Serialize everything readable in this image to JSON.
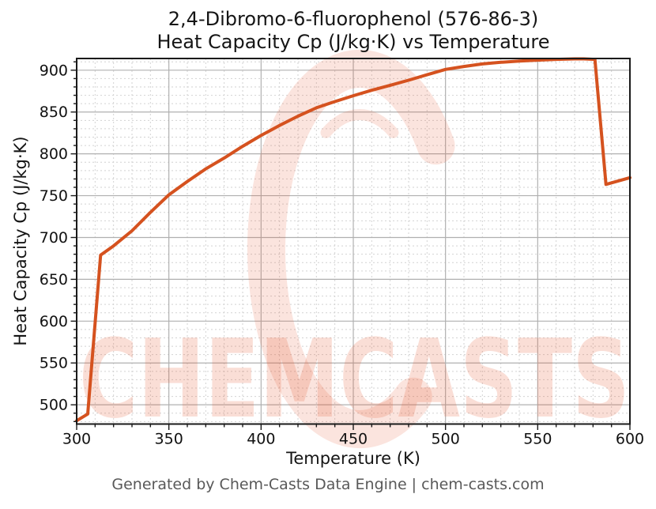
{
  "figure": {
    "title_line1": "2,4-Dibromo-6-fluorophenol (576-86-3)",
    "title_line2": "Heat Capacity Cp (J/kg·K) vs Temperature",
    "footer": "Generated by Chem-Casts Data Engine | chem-casts.com",
    "watermark_text": "CHEMCASTS",
    "colors": {
      "line": "#d5521f",
      "grid_major": "#b0b0b0",
      "grid_minor": "#d2d2d2",
      "frame": "#1a1a1a",
      "tick": "#1a1a1a",
      "tick_label": "#111111",
      "watermark": "rgba(232,88,52,0.20)",
      "watermark_ring": "rgba(232,88,52,0.16)",
      "footer_text": "#595959"
    }
  },
  "chart_data": {
    "type": "line",
    "title": "2,4-Dibromo-6-fluorophenol (576-86-3) — Heat Capacity Cp (J/kg·K) vs Temperature",
    "xlabel": "Temperature (K)",
    "ylabel": "Heat Capacity Cp (J/kg·K)",
    "xlim": [
      300,
      600
    ],
    "ylim": [
      477,
      914
    ],
    "x_ticks": [
      300,
      350,
      400,
      450,
      500,
      550,
      600
    ],
    "y_ticks": [
      500,
      550,
      600,
      650,
      700,
      750,
      800,
      850,
      900
    ],
    "x_minor_step": 10,
    "y_minor_step": 10,
    "grid": true,
    "legend": "none",
    "series": [
      {
        "name": "Heat Capacity Cp",
        "x": [
          300,
          306,
          313,
          320,
          330,
          340,
          350,
          360,
          370,
          380,
          390,
          400,
          410,
          420,
          430,
          440,
          450,
          460,
          470,
          480,
          490,
          500,
          510,
          520,
          530,
          540,
          550,
          560,
          570,
          575,
          581,
          587,
          600
        ],
        "y": [
          481,
          489,
          679,
          690,
          708,
          730,
          751,
          767,
          782,
          795,
          809,
          822,
          834,
          845,
          855,
          862.5,
          869.5,
          876,
          882,
          888,
          894.5,
          901,
          904.5,
          907.5,
          909.5,
          911,
          912,
          913,
          913.5,
          913.5,
          913,
          763.5,
          771.5
        ]
      }
    ],
    "annotations": {
      "melting_kink_K": 313,
      "boiling_drop_K": 581
    }
  }
}
